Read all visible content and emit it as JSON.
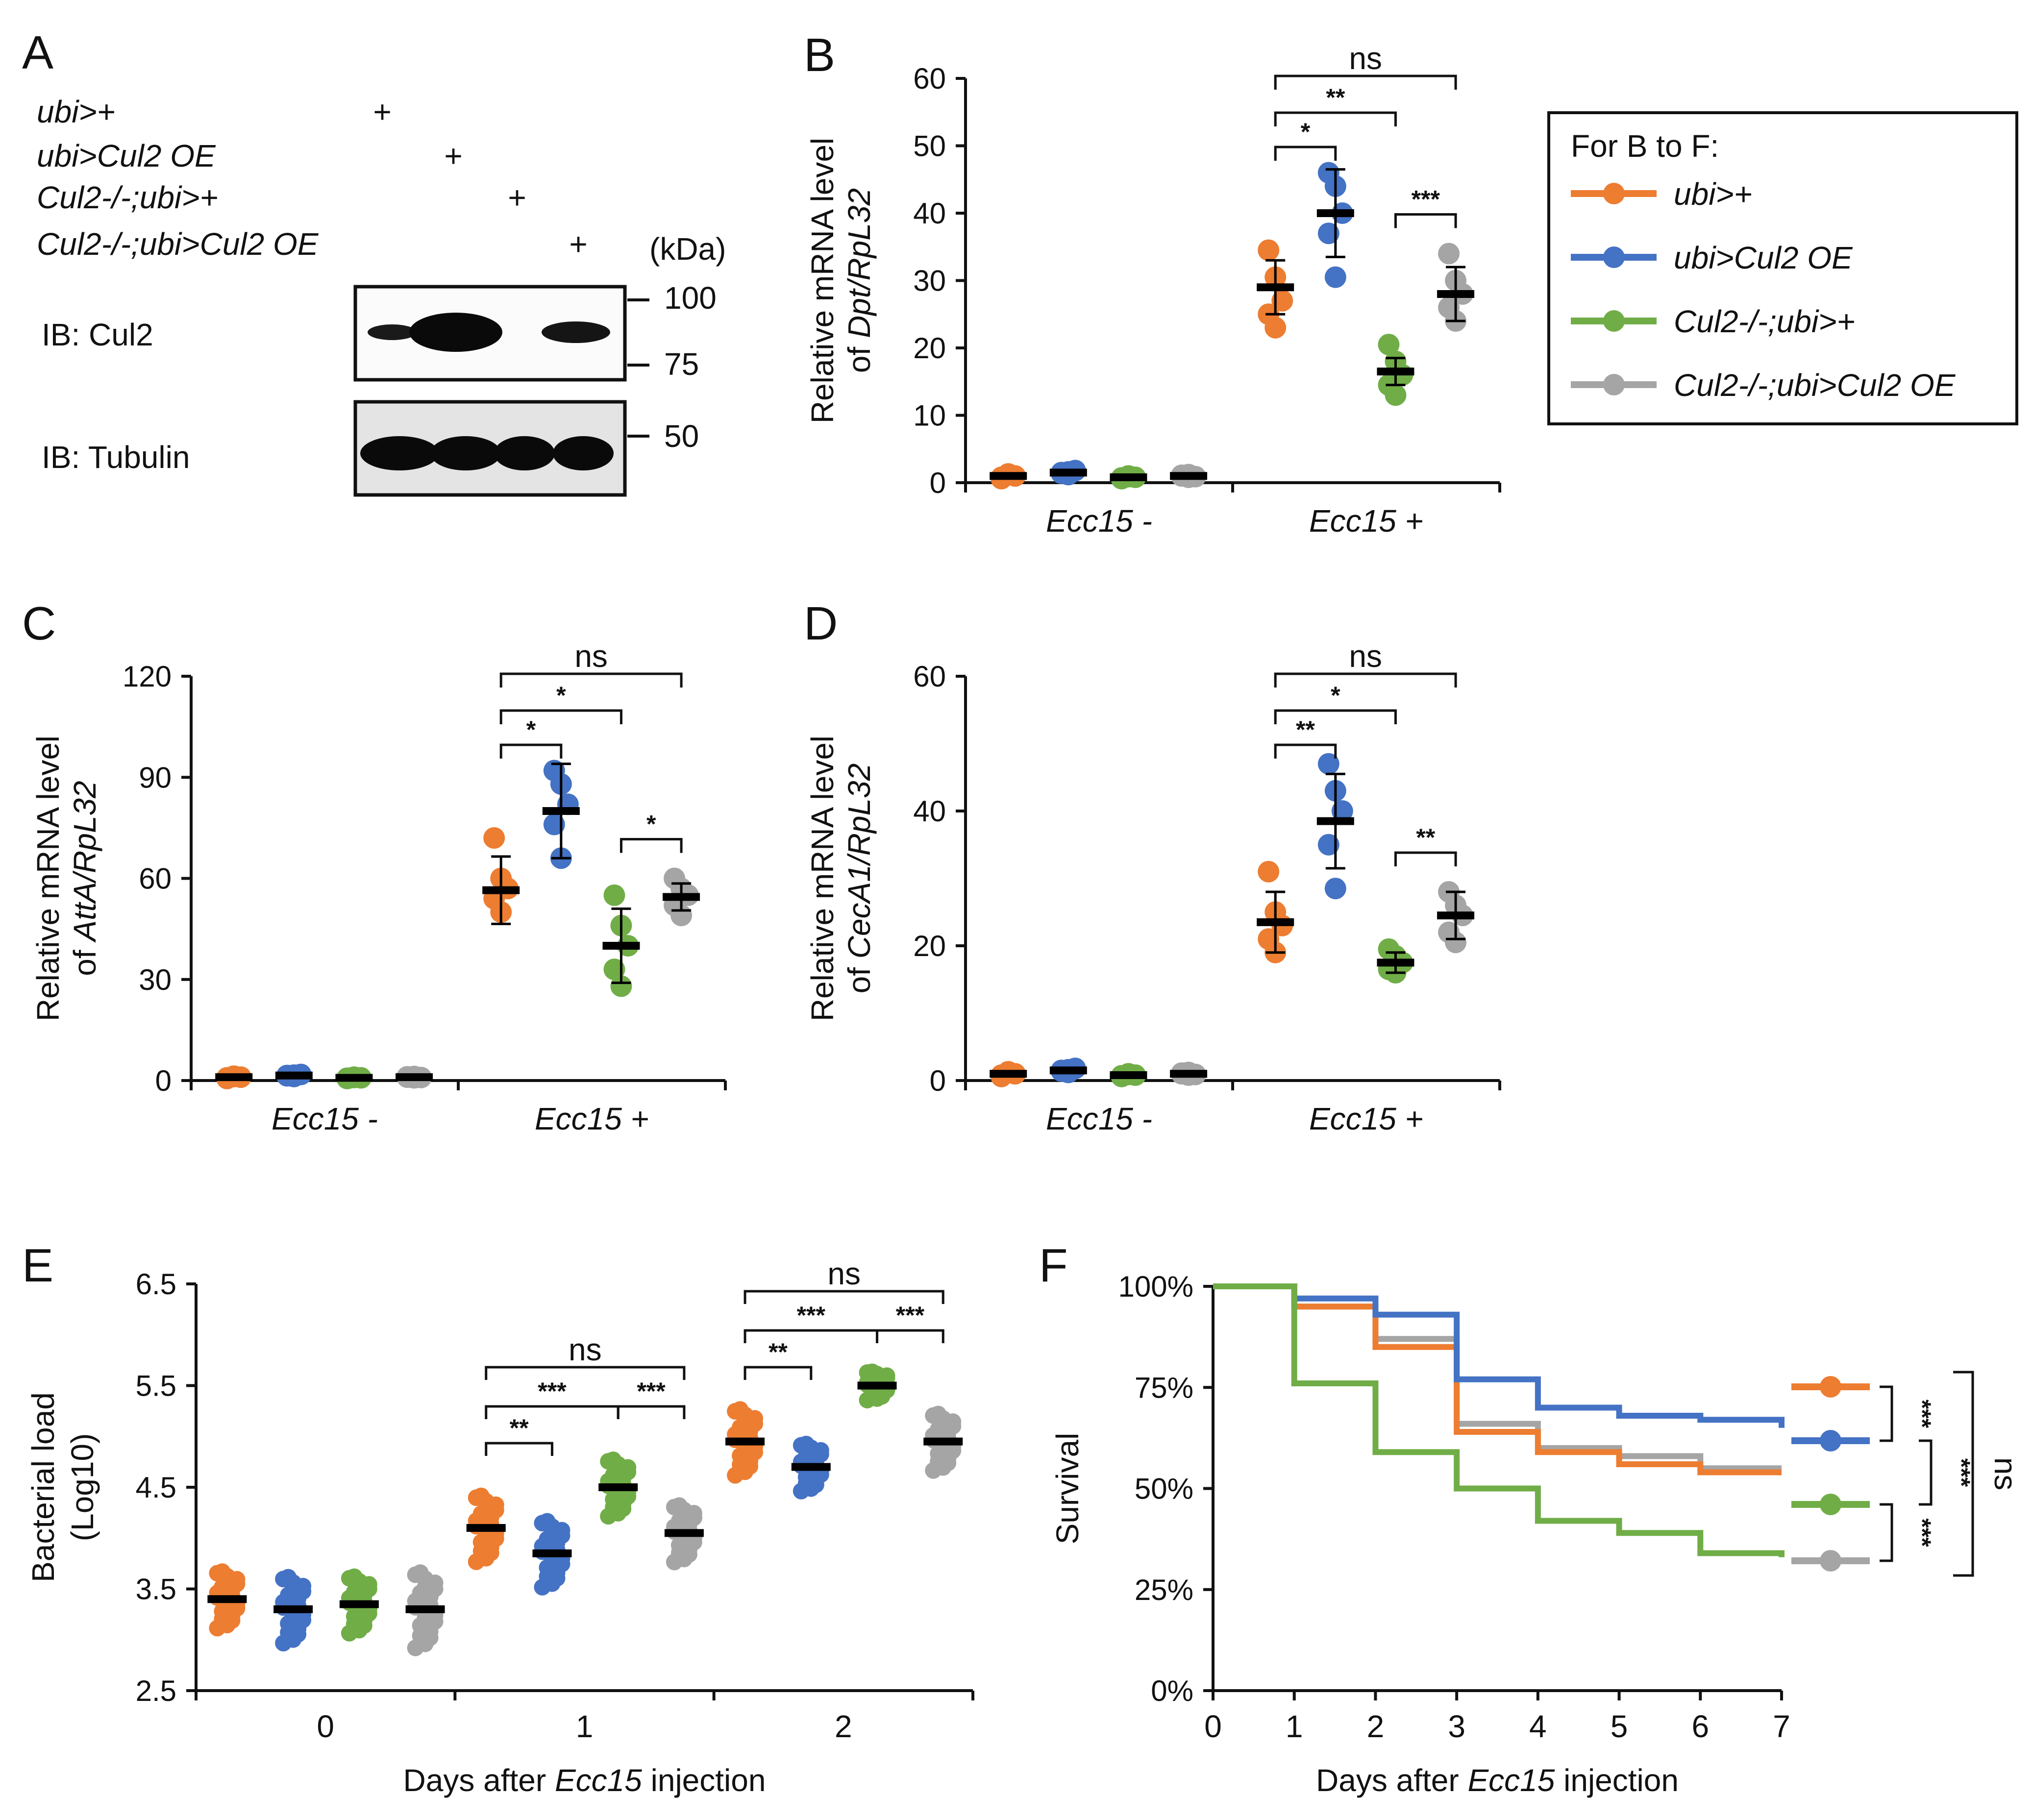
{
  "colors": {
    "ubi": "#ED7D31",
    "cul2oe": "#4472C4",
    "mutant": "#70AD47",
    "rescue": "#A5A5A5"
  },
  "panel_a": {
    "letter": "A",
    "genotypes": [
      "ubi>+",
      "ubi>Cul2 OE",
      "Cul2-/-;ubi>+",
      "Cul2-/-;ubi>Cul2 OE"
    ],
    "plus": "+",
    "kda": "(kDa)",
    "markers": [
      "100",
      "75",
      "50"
    ],
    "blots": [
      "IB: Cul2",
      "IB: Tubulin"
    ]
  },
  "legend": {
    "title": "For B to F:",
    "entries": [
      "ubi>+",
      "ubi>Cul2 OE",
      "Cul2-/-;ubi>+",
      "Cul2-/-;ubi>Cul2 OE"
    ]
  },
  "chart_data": [
    {
      "panel": "B",
      "type": "scatter",
      "title": "",
      "ylabel_line1": "Relative mRNA level",
      "ylabel_prefix": "of ",
      "ylabel_gene": "Dpt/RpL32",
      "ylim": [
        0,
        60
      ],
      "yticks": [
        "0",
        "10",
        "20",
        "30",
        "40",
        "50",
        "60"
      ],
      "categories": [
        "Ecc15 -",
        "Ecc15 +"
      ],
      "series": [
        {
          "name": "ubi>+",
          "means": [
            1,
            29
          ],
          "err": [
            0.5,
            4
          ],
          "points": [
            [
              0.8,
              1.2,
              1.0,
              0.6,
              1.3
            ],
            [
              34.5,
              30.5,
              27,
              25,
              23
            ]
          ]
        },
        {
          "name": "ubi>Cul2 OE",
          "means": [
            1.5,
            40
          ],
          "err": [
            0.5,
            6.5
          ],
          "points": [
            [
              1.5,
              1.2,
              1.8,
              1.4,
              1.6
            ],
            [
              46,
              44,
              40,
              37,
              30.5
            ]
          ]
        },
        {
          "name": "Cul2-/-;ubi>+",
          "means": [
            0.8,
            16.5
          ],
          "err": [
            0.3,
            2
          ],
          "points": [
            [
              0.7,
              0.9,
              0.8,
              0.6,
              1.0
            ],
            [
              20.5,
              18,
              16,
              14.5,
              13
            ]
          ]
        },
        {
          "name": "Cul2-/-;ubi>Cul2 OE",
          "means": [
            1,
            28
          ],
          "err": [
            0.4,
            4
          ],
          "points": [
            [
              1.0,
              1.2,
              0.9,
              1.1,
              0.8
            ],
            [
              34,
              30,
              28,
              26,
              24
            ]
          ]
        }
      ],
      "comparisons": [
        {
          "text": "ns",
          "pair": [
            0,
            3
          ]
        },
        {
          "text": "**",
          "pair": [
            0,
            2
          ]
        },
        {
          "text": "*",
          "pair": [
            0,
            1
          ]
        },
        {
          "text": "***",
          "pair": [
            2,
            3
          ]
        }
      ]
    },
    {
      "panel": "C",
      "type": "scatter",
      "title": "",
      "ylabel_line1": "Relative mRNA level",
      "ylabel_prefix": "of ",
      "ylabel_gene": "AttA/RpL32",
      "ylim": [
        0,
        120
      ],
      "yticks": [
        "0",
        "30",
        "60",
        "90",
        "120"
      ],
      "categories": [
        "Ecc15 -",
        "Ecc15 +"
      ],
      "series": [
        {
          "name": "ubi>+",
          "means": [
            1,
            56.5
          ],
          "err": [
            0.5,
            10
          ],
          "points": [
            [
              0.8,
              1.2,
              1.0,
              0.6,
              1.3
            ],
            [
              72,
              60,
              57,
              54,
              50
            ]
          ]
        },
        {
          "name": "ubi>Cul2 OE",
          "means": [
            1.5,
            80
          ],
          "err": [
            0.5,
            14
          ],
          "points": [
            [
              1.5,
              1.2,
              1.8,
              1.4,
              1.6
            ],
            [
              92,
              88,
              82,
              76,
              66
            ]
          ]
        },
        {
          "name": "Cul2-/-;ubi>+",
          "means": [
            0.8,
            40
          ],
          "err": [
            0.3,
            11
          ],
          "points": [
            [
              0.7,
              0.9,
              0.8,
              0.6,
              1.0
            ],
            [
              55,
              46,
              40,
              33,
              28
            ]
          ]
        },
        {
          "name": "Cul2-/-;ubi>Cul2 OE",
          "means": [
            1,
            54.5
          ],
          "err": [
            0.4,
            4
          ],
          "points": [
            [
              1.0,
              1.2,
              0.9,
              1.1,
              0.8
            ],
            [
              60,
              57,
              55,
              52,
              49
            ]
          ]
        }
      ],
      "comparisons": [
        {
          "text": "ns",
          "pair": [
            0,
            3
          ]
        },
        {
          "text": "*",
          "pair": [
            0,
            2
          ]
        },
        {
          "text": "*",
          "pair": [
            0,
            1
          ]
        },
        {
          "text": "*",
          "pair": [
            2,
            3
          ]
        }
      ]
    },
    {
      "panel": "D",
      "type": "scatter",
      "title": "",
      "ylabel_line1": "Relative mRNA level",
      "ylabel_prefix": "of ",
      "ylabel_gene": "CecA1/RpL32",
      "ylim": [
        0,
        60
      ],
      "yticks": [
        "0",
        "20",
        "40",
        "60"
      ],
      "categories": [
        "Ecc15 -",
        "Ecc15 +"
      ],
      "series": [
        {
          "name": "ubi>+",
          "means": [
            1,
            23.5
          ],
          "err": [
            0.5,
            4.5
          ],
          "points": [
            [
              0.8,
              1.2,
              1.0,
              0.6,
              1.3
            ],
            [
              31,
              25,
              23,
              21,
              19
            ]
          ]
        },
        {
          "name": "ubi>Cul2 OE",
          "means": [
            1.5,
            38.5
          ],
          "err": [
            0.5,
            7
          ],
          "points": [
            [
              1.5,
              1.2,
              1.8,
              1.4,
              1.6
            ],
            [
              47,
              43,
              40,
              35,
              28.5
            ]
          ]
        },
        {
          "name": "Cul2-/-;ubi>+",
          "means": [
            0.8,
            17.5
          ],
          "err": [
            0.3,
            1.5
          ],
          "points": [
            [
              0.7,
              0.9,
              0.8,
              0.6,
              1.0
            ],
            [
              19.5,
              18.5,
              17.5,
              16.5,
              16
            ]
          ]
        },
        {
          "name": "Cul2-/-;ubi>Cul2 OE",
          "means": [
            1,
            24.5
          ],
          "err": [
            0.4,
            3.5
          ],
          "points": [
            [
              1.0,
              1.2,
              0.9,
              1.1,
              0.8
            ],
            [
              28,
              26,
              24.5,
              22,
              20.5
            ]
          ]
        }
      ],
      "comparisons": [
        {
          "text": "ns",
          "pair": [
            0,
            3
          ]
        },
        {
          "text": "*",
          "pair": [
            0,
            2
          ]
        },
        {
          "text": "**",
          "pair": [
            0,
            1
          ]
        },
        {
          "text": "**",
          "pair": [
            2,
            3
          ]
        }
      ]
    },
    {
      "panel": "E",
      "type": "scatter",
      "title": "",
      "ylabel_line1": "Bacterial load",
      "ylabel_line2": "(Log10)",
      "ylim": [
        2.5,
        6.5
      ],
      "yticks": [
        "2.5",
        "3.5",
        "4.5",
        "5.5",
        "6.5"
      ],
      "categories": [
        "0",
        "1",
        "2"
      ],
      "xlabel_prefix": "Days after ",
      "xlabel_ital": "Ecc15",
      "xlabel_suffix": " injection",
      "series": [
        {
          "name": "ubi>+",
          "means": [
            3.4,
            4.1,
            4.95
          ],
          "spread": [
            0.3,
            0.35,
            0.35
          ]
        },
        {
          "name": "ubi>Cul2 OE",
          "means": [
            3.3,
            3.85,
            4.7
          ],
          "spread": [
            0.35,
            0.35,
            0.25
          ]
        },
        {
          "name": "Cul2-/-;ubi>+",
          "means": [
            3.35,
            4.5,
            5.5
          ],
          "spread": [
            0.3,
            0.3,
            0.15
          ]
        },
        {
          "name": "Cul2-/-;ubi>Cul2 OE",
          "means": [
            3.3,
            4.05,
            4.95
          ],
          "spread": [
            0.4,
            0.3,
            0.3
          ]
        }
      ],
      "comparisons": [
        {
          "group": 1,
          "text": "ns",
          "pair": [
            0,
            3
          ]
        },
        {
          "group": 1,
          "text": "***",
          "pair": [
            0,
            2
          ]
        },
        {
          "group": 1,
          "text": "**",
          "pair": [
            0,
            1
          ]
        },
        {
          "group": 1,
          "text": "***",
          "pair": [
            2,
            3
          ]
        },
        {
          "group": 2,
          "text": "ns",
          "pair": [
            0,
            3
          ]
        },
        {
          "group": 2,
          "text": "***",
          "pair": [
            0,
            2
          ]
        },
        {
          "group": 2,
          "text": "**",
          "pair": [
            0,
            1
          ]
        },
        {
          "group": 2,
          "text": "***",
          "pair": [
            2,
            3
          ]
        }
      ]
    },
    {
      "panel": "F",
      "type": "line",
      "step": true,
      "title": "",
      "ylabel": "Survival",
      "ylim": [
        0,
        100
      ],
      "yticks": [
        "0%",
        "25%",
        "50%",
        "75%",
        "100%"
      ],
      "x": [
        0,
        1,
        2,
        3,
        4,
        5,
        6,
        7
      ],
      "xticks": [
        "0",
        "1",
        "2",
        "3",
        "4",
        "5",
        "6",
        "7"
      ],
      "xlabel_prefix": "Days after ",
      "xlabel_ital": "Ecc15",
      "xlabel_suffix": " injection",
      "series": [
        {
          "name": "ubi>+",
          "values": [
            100,
            95,
            85,
            64,
            59,
            56,
            54,
            54
          ]
        },
        {
          "name": "ubi>Cul2 OE",
          "values": [
            100,
            97,
            93,
            77,
            70,
            68,
            67,
            65
          ]
        },
        {
          "name": "Cul2-/-;ubi>+",
          "values": [
            100,
            76,
            59,
            50,
            42,
            39,
            34,
            33
          ]
        },
        {
          "name": "Cul2-/-;ubi>Cul2 OE",
          "values": [
            100,
            95,
            87,
            66,
            60,
            58,
            55,
            55
          ]
        }
      ],
      "comparisons": [
        {
          "text": "***",
          "pair": [
            0,
            1
          ]
        },
        {
          "text": "***",
          "pair": [
            2,
            3
          ]
        },
        {
          "text": "***",
          "pair": [
            1,
            2
          ]
        },
        {
          "text": "ns",
          "pair": [
            0,
            3
          ]
        }
      ]
    }
  ]
}
